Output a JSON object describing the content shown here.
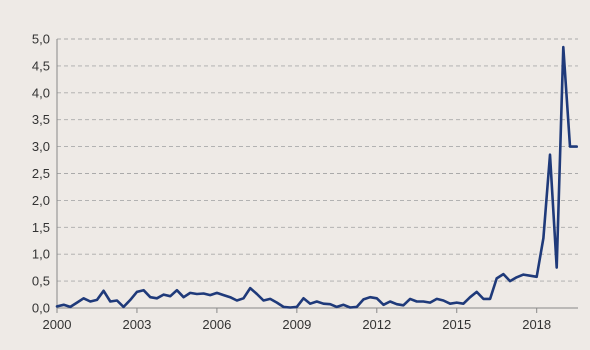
{
  "chart_data": {
    "type": "line",
    "title": "",
    "xlabel": "",
    "ylabel": "",
    "xlim": [
      2000,
      2019.55
    ],
    "ylim": [
      0,
      5
    ],
    "x_ticks": [
      2000,
      2003,
      2006,
      2009,
      2012,
      2015,
      2018
    ],
    "x_tick_labels": [
      "2000",
      "2003",
      "2006",
      "2009",
      "2012",
      "2015",
      "2018"
    ],
    "y_ticks": [
      0,
      0.5,
      1,
      1.5,
      2,
      2.5,
      3,
      3.5,
      4,
      4.5,
      5
    ],
    "y_tick_labels": [
      "0,0",
      "0,5",
      "1,0",
      "1,5",
      "2,0",
      "2,5",
      "3,0",
      "3,5",
      "4,0",
      "4,5",
      "5,0"
    ],
    "grid": {
      "y": true,
      "x": false,
      "style": "dashed"
    },
    "legend": "none",
    "colors": {
      "line": "#1f3a7a",
      "grid": "#aaaaaa",
      "axis": "#888888",
      "background": "#eeeae6"
    },
    "series": [
      {
        "x": [
          2000.0,
          2000.25,
          2000.5,
          2000.75,
          2001.0,
          2001.25,
          2001.5,
          2001.75,
          2002.0,
          2002.25,
          2002.5,
          2002.75,
          2003.0,
          2003.25,
          2003.5,
          2003.75,
          2004.0,
          2004.25,
          2004.5,
          2004.75,
          2005.0,
          2005.25,
          2005.5,
          2005.75,
          2006.0,
          2006.25,
          2006.5,
          2006.75,
          2007.0,
          2007.25,
          2007.5,
          2007.75,
          2008.0,
          2008.25,
          2008.5,
          2008.75,
          2009.0,
          2009.25,
          2009.5,
          2009.75,
          2010.0,
          2010.25,
          2010.5,
          2010.75,
          2011.0,
          2011.25,
          2011.5,
          2011.75,
          2012.0,
          2012.25,
          2012.5,
          2012.75,
          2013.0,
          2013.25,
          2013.5,
          2013.75,
          2014.0,
          2014.25,
          2014.5,
          2014.75,
          2015.0,
          2015.25,
          2015.5,
          2015.75,
          2016.0,
          2016.25,
          2016.5,
          2016.75,
          2017.0,
          2017.25,
          2017.5,
          2017.75,
          2018.0,
          2018.25,
          2018.5,
          2018.75,
          2019.0,
          2019.25,
          2019.5
        ],
        "y": [
          0.03,
          0.06,
          0.02,
          0.1,
          0.18,
          0.12,
          0.15,
          0.32,
          0.12,
          0.14,
          0.02,
          0.15,
          0.3,
          0.33,
          0.2,
          0.18,
          0.25,
          0.22,
          0.33,
          0.2,
          0.28,
          0.26,
          0.27,
          0.24,
          0.28,
          0.24,
          0.2,
          0.14,
          0.18,
          0.37,
          0.26,
          0.14,
          0.17,
          0.1,
          0.02,
          0.01,
          0.02,
          0.18,
          0.08,
          0.12,
          0.08,
          0.07,
          0.02,
          0.06,
          0.01,
          0.02,
          0.16,
          0.2,
          0.18,
          0.06,
          0.12,
          0.07,
          0.05,
          0.17,
          0.12,
          0.12,
          0.1,
          0.17,
          0.14,
          0.08,
          0.1,
          0.08,
          0.2,
          0.3,
          0.17,
          0.17,
          0.55,
          0.63,
          0.5,
          0.57,
          0.62,
          0.6,
          0.58,
          1.3,
          2.85,
          0.75,
          4.85,
          3.0,
          3.0
        ]
      }
    ]
  }
}
